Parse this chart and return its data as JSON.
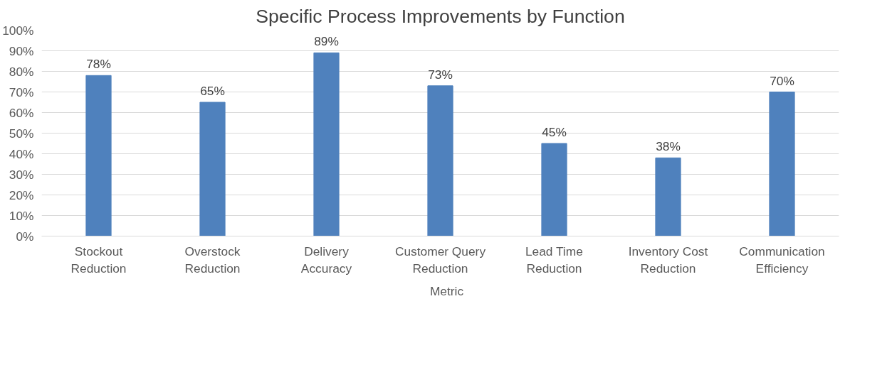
{
  "chart_data": {
    "type": "bar",
    "title": "Specific Process Improvements by Function",
    "categories": [
      "Stockout Reduction",
      "Overstock Reduction",
      "Delivery Accuracy",
      "Customer Query Reduction",
      "Lead Time Reduction",
      "Inventory Cost Reduction",
      "Communication Efficiency"
    ],
    "series": [
      {
        "name": "Metric",
        "color": "#4f81bd",
        "values": [
          78,
          65,
          89,
          73,
          45,
          38,
          70
        ],
        "value_labels": [
          "78%",
          "65%",
          "89%",
          "73%",
          "45%",
          "38%",
          "70%"
        ]
      }
    ],
    "ylim": [
      0,
      100
    ],
    "yticks": [
      {
        "value": 0,
        "label": "0%"
      },
      {
        "value": 10,
        "label": "10%"
      },
      {
        "value": 20,
        "label": "20%"
      },
      {
        "value": 30,
        "label": "30%"
      },
      {
        "value": 40,
        "label": "40%"
      },
      {
        "value": 50,
        "label": "50%"
      },
      {
        "value": 60,
        "label": "60%"
      },
      {
        "value": 70,
        "label": "70%"
      },
      {
        "value": 80,
        "label": "80%"
      },
      {
        "value": 90,
        "label": "90%"
      },
      {
        "value": 100,
        "label": "100%"
      }
    ],
    "grid": "y",
    "legend": "bottom"
  }
}
